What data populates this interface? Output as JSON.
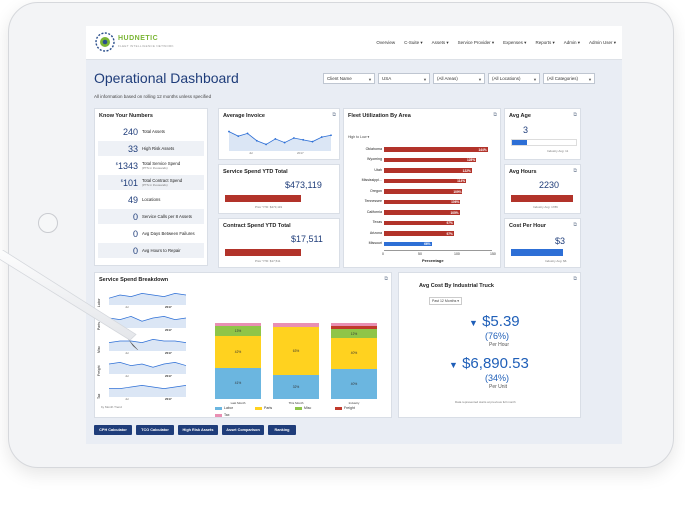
{
  "nav": {
    "logo_text": "HUDNETIC",
    "logo_sub": "FLEET INTELLIGENCE NETWORK",
    "items": [
      "Overview",
      "C-Suite ▾",
      "Assets ▾",
      "Service Provider ▾",
      "Expenses ▾",
      "Reports ▾",
      "Admin ▾",
      "Admin User ▾"
    ]
  },
  "header": {
    "title": "Operational Dashboard",
    "subtitle": "All information based on rolling 12 months unless specified"
  },
  "filters": [
    {
      "value": "Client Name",
      "width": 52
    },
    {
      "value": "USA",
      "width": 52
    },
    {
      "value": "(All Areas)",
      "width": 52
    },
    {
      "value": "(All Locations)",
      "width": 52
    },
    {
      "value": "(All Categories)",
      "width": 52
    }
  ],
  "know_your_numbers": {
    "title": "Know Your Numbers",
    "rows": [
      {
        "value": "240",
        "label": "Total Assets",
        "note": ""
      },
      {
        "value": "33",
        "label": "High Risk Assets",
        "note": ""
      },
      {
        "value": "1343",
        "prefix": "$",
        "label": "Total Service Spend",
        "note": "(PTS in thousands)"
      },
      {
        "value": "101",
        "prefix": "$",
        "label": "Total Contract Spend",
        "note": "(PTS in thousands)"
      },
      {
        "value": "49",
        "label": "Locations",
        "note": ""
      },
      {
        "value": "0",
        "label": "Service Calls per 8 Assets",
        "note": ""
      },
      {
        "value": "0",
        "label": "Avg Days Between Failures",
        "note": ""
      },
      {
        "value": "0",
        "label": "Avg Hours to Repair",
        "note": ""
      }
    ]
  },
  "average_invoice": {
    "title": "Average Invoice",
    "x_labels": [
      "Jul",
      "2017"
    ],
    "values": [
      6,
      5.5,
      5.8,
      5,
      4.6,
      5.2,
      4.8,
      5.3,
      5.1,
      4.9,
      5.4,
      5.6
    ]
  },
  "service_spend_ytd": {
    "title": "Service Spend YTD Total",
    "value": "$473,119",
    "note": "Prior YTD: $473,119",
    "fill": 0.7
  },
  "contract_spend_ytd": {
    "title": "Contract Spend YTD Total",
    "value": "$17,511",
    "note": "Prior YTD: $17,511",
    "fill": 0.7
  },
  "fleet_utilization": {
    "title": "Fleet Utilization By Area",
    "sort": "High to Low ▾",
    "xlabel": "Percentage",
    "ticks": [
      "0",
      "50",
      "100",
      "150"
    ],
    "max": 150,
    "bars": [
      {
        "label": "Oklahoma",
        "value": 144,
        "text": "144%"
      },
      {
        "label": "Wyoming",
        "value": 128,
        "text": "128%"
      },
      {
        "label": "Utah",
        "value": 122,
        "text": "122%"
      },
      {
        "label": "Mississippi...",
        "value": 114,
        "text": "114%"
      },
      {
        "label": "Oregon",
        "value": 109,
        "text": "109%"
      },
      {
        "label": "Tennessee",
        "value": 106,
        "text": "106%"
      },
      {
        "label": "California",
        "value": 105,
        "text": "105%"
      },
      {
        "label": "Texas",
        "value": 97,
        "text": "97%"
      },
      {
        "label": "Arizona",
        "value": 97,
        "text": "97%"
      },
      {
        "label": "Missouri",
        "value": 66,
        "text": "66%",
        "highlight": true
      }
    ]
  },
  "avg_age": {
    "title": "Avg Age",
    "value": "3",
    "note": "Industry Avg: 11"
  },
  "avg_hours": {
    "title": "Avg Hours",
    "value": "2230",
    "note": "Industry Avg: 1786"
  },
  "cost_per_hour": {
    "title": "Cost Per Hour",
    "value": "$3",
    "note": "Industry Avg: $6"
  },
  "service_spend_breakdown": {
    "title": "Service Spend Breakdown",
    "sparks": [
      {
        "label": "Labor",
        "year": "2017"
      },
      {
        "label": "Parts",
        "year": "2017"
      },
      {
        "label": "Misc",
        "year": "2017"
      },
      {
        "label": "Freight",
        "year": "2017"
      },
      {
        "label": "Tax",
        "year": "2017"
      }
    ],
    "spark_x_label": "Jul",
    "footer": "by Month Trend",
    "columns": [
      {
        "label": "Last Month",
        "segments": [
          41,
          42,
          13,
          0,
          4
        ],
        "texts": [
          "41%",
          "42%",
          "13%",
          "",
          ""
        ]
      },
      {
        "label": "This Month",
        "segments": [
          32,
          63,
          0,
          0,
          5
        ],
        "texts": [
          "32%",
          "63%",
          "",
          "",
          ""
        ]
      },
      {
        "label": "Industry",
        "segments": [
          40,
          40,
          12,
          4,
          4
        ],
        "texts": [
          "40%",
          "40%",
          "12%",
          "",
          ""
        ]
      }
    ],
    "legend": [
      "Labor",
      "Parts",
      "Misc",
      "Freight",
      "Tax"
    ],
    "colors": [
      "#6bb6e0",
      "#ffd21f",
      "#8fc548",
      "#c0392b",
      "#e98fb3"
    ]
  },
  "avg_cost_truck": {
    "title": "Avg Cost By Industrial Truck",
    "period": "Past 12 Months ▾",
    "hour_value": "$5.39",
    "hour_pct": "(76%)",
    "hour_unit": "Per Hour",
    "unit_value": "$6,890.53",
    "unit_pct": "(34%)",
    "unit_unit": "Per Unit",
    "note": "Data represented starts at previous full month"
  },
  "buttons": [
    "CPH Calculator",
    "TCO Calculator",
    "High Risk Assets",
    "Asset Comparison",
    "Ranking"
  ]
}
